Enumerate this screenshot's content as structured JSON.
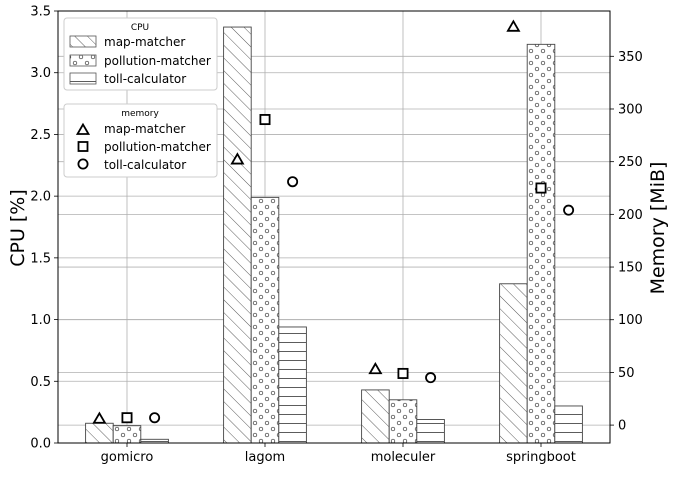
{
  "chart_data": {
    "type": "bar",
    "categories": [
      "gomicro",
      "lagom",
      "moleculer",
      "springboot"
    ],
    "cpu": {
      "ylabel": "CPU [%]",
      "ylim": [
        0,
        3.5
      ],
      "yticks": [
        "0.0",
        "0.5",
        "1.0",
        "1.5",
        "2.0",
        "2.5",
        "3.0",
        "3.5"
      ],
      "series": [
        {
          "name": "map-matcher",
          "hatch": "diagonal",
          "values": [
            0.16,
            3.37,
            0.43,
            1.29
          ]
        },
        {
          "name": "pollution-matcher",
          "hatch": "circles",
          "values": [
            0.14,
            1.99,
            0.35,
            3.23
          ]
        },
        {
          "name": "toll-calculator",
          "hatch": "horizontal",
          "values": [
            0.03,
            0.94,
            0.19,
            0.3
          ]
        }
      ]
    },
    "memory": {
      "ylabel": "Memory [MiB]",
      "ylim": [
        -17,
        393
      ],
      "yticks": [
        "0",
        "50",
        "100",
        "150",
        "200",
        "250",
        "300",
        "350"
      ],
      "series": [
        {
          "name": "map-matcher",
          "marker": "triangle",
          "values": [
            6,
            252,
            53,
            378
          ]
        },
        {
          "name": "pollution-matcher",
          "marker": "square",
          "values": [
            7,
            290,
            49,
            225
          ]
        },
        {
          "name": "toll-calculator",
          "marker": "circle",
          "values": [
            7,
            231,
            45,
            204
          ]
        }
      ]
    },
    "legend": {
      "cpu_title": "CPU",
      "memory_title": "memory",
      "placement": "top-left"
    },
    "grid": true
  }
}
